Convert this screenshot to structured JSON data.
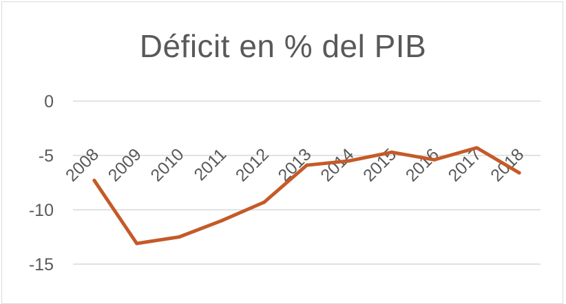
{
  "chart_data": {
    "type": "line",
    "title": "Déficit en % del PIB",
    "xlabel": "",
    "ylabel": "",
    "categories": [
      "2008",
      "2009",
      "2010",
      "2011",
      "2012",
      "2013",
      "2014",
      "2015",
      "2016",
      "2017",
      "2018"
    ],
    "series": [
      {
        "values": [
          -7.3,
          -13.1,
          -12.5,
          -11.0,
          -9.3,
          -5.9,
          -5.5,
          -4.7,
          -5.4,
          -4.3,
          -6.6
        ]
      }
    ],
    "y_ticks": [
      0,
      -5,
      -10,
      -15
    ],
    "ylim": [
      -16,
      0
    ],
    "grid": true,
    "colors": {
      "line": "#c55a28",
      "grid": "#d9d9d9",
      "text": "#595959"
    }
  }
}
